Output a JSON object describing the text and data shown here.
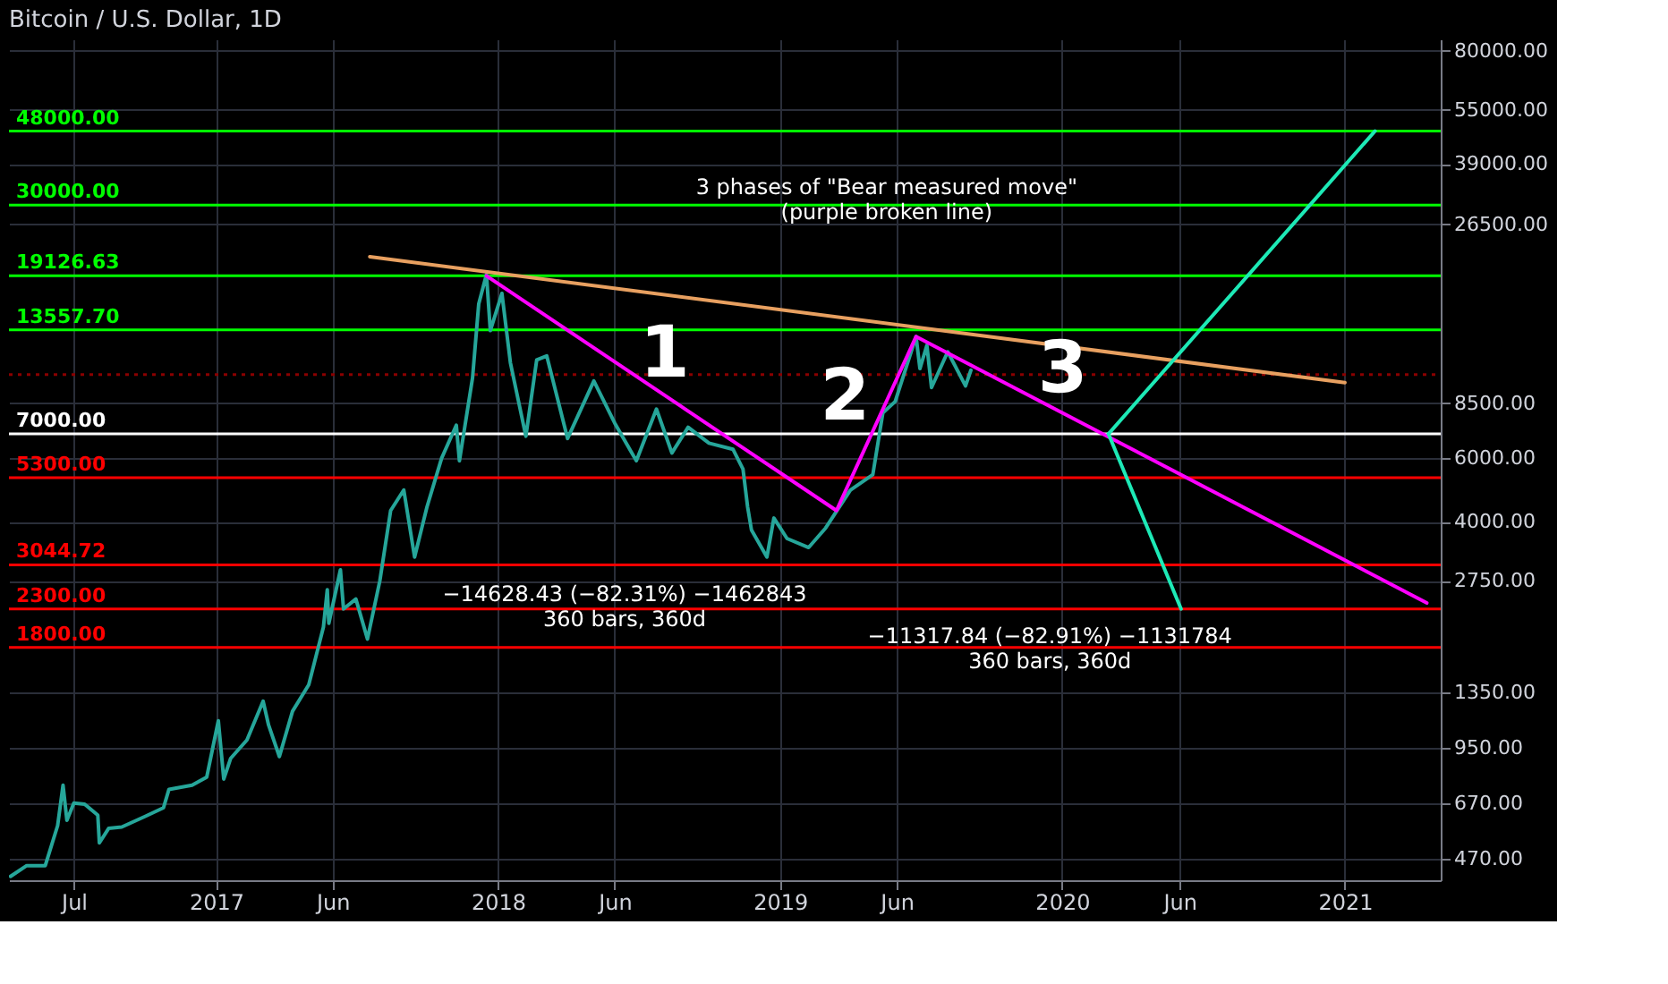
{
  "chart_data": {
    "type": "line",
    "title": "Bitcoin / U.S. Dollar, 1D",
    "xlim": [
      "2016-04-08",
      "2021-05-05"
    ],
    "xticks": [
      {
        "value": "2016-07-01",
        "label": "Jul"
      },
      {
        "value": "2017-01-01",
        "label": "2017"
      },
      {
        "value": "2017-06-01",
        "label": "Jun"
      },
      {
        "value": "2018-01-01",
        "label": "2018"
      },
      {
        "value": "2018-06-01",
        "label": "Jun"
      },
      {
        "value": "2019-01-01",
        "label": "2019"
      },
      {
        "value": "2019-06-01",
        "label": "Jun"
      },
      {
        "value": "2020-01-01",
        "label": "2020"
      },
      {
        "value": "2020-06-01",
        "label": "Jun"
      },
      {
        "value": "2021-01-01",
        "label": "2021"
      }
    ],
    "ylim": [
      410,
      86000
    ],
    "log": true,
    "yticks": [
      {
        "value": 470,
        "label": "470.00"
      },
      {
        "value": 670,
        "label": "670.00"
      },
      {
        "value": 950,
        "label": "950.00"
      },
      {
        "value": 1350,
        "label": "1350.00"
      },
      {
        "value": 2750,
        "label": "2750.00"
      },
      {
        "value": 4000,
        "label": "4000.00"
      },
      {
        "value": 6000,
        "label": "6000.00"
      },
      {
        "value": 8500,
        "label": "8500.00"
      },
      {
        "value": 26500,
        "label": "26500.00"
      },
      {
        "value": 39000,
        "label": "39000.00"
      },
      {
        "value": 55000,
        "label": "55000.00"
      },
      {
        "value": 80000,
        "label": "80000.00"
      }
    ],
    "grid": true,
    "series": [
      {
        "color": "#26a69a",
        "x": [
          "2016-04-10",
          "2016-05-01",
          "2016-05-25",
          "2016-06-10",
          "2016-06-17",
          "2016-06-22",
          "2016-07-01",
          "2016-07-15",
          "2016-08-01",
          "2016-08-03",
          "2016-08-15",
          "2016-09-01",
          "2016-10-01",
          "2016-10-25",
          "2016-11-01",
          "2016-12-01",
          "2016-12-20",
          "2017-01-04",
          "2017-01-11",
          "2017-01-20",
          "2017-02-10",
          "2017-03-03",
          "2017-03-10",
          "2017-03-24",
          "2017-04-10",
          "2017-05-01",
          "2017-05-20",
          "2017-05-25",
          "2017-05-27",
          "2017-06-11",
          "2017-06-15",
          "2017-07-01",
          "2017-07-16",
          "2017-08-01",
          "2017-08-15",
          "2017-09-01",
          "2017-09-15",
          "2017-10-01",
          "2017-10-20",
          "2017-11-08",
          "2017-11-12",
          "2017-11-29",
          "2017-12-07",
          "2017-12-17",
          "2017-12-22",
          "2018-01-06",
          "2018-01-17",
          "2018-02-06",
          "2018-02-20",
          "2018-03-05",
          "2018-04-01",
          "2018-05-05",
          "2018-06-01",
          "2018-06-29",
          "2018-07-25",
          "2018-08-14",
          "2018-09-04",
          "2018-10-01",
          "2018-11-01",
          "2018-11-14",
          "2018-11-20",
          "2018-11-25",
          "2018-12-15",
          "2018-12-24",
          "2019-01-10",
          "2019-02-07",
          "2019-03-01",
          "2019-04-02",
          "2019-05-01",
          "2019-05-14",
          "2019-05-30",
          "2019-06-26",
          "2019-07-01",
          "2019-07-10",
          "2019-07-16",
          "2019-08-06",
          "2019-08-29",
          "2019-09-05"
        ],
        "values": [
          420,
          450,
          450,
          580,
          750,
          600,
          670,
          665,
          620,
          520,
          570,
          575,
          615,
          650,
          730,
          750,
          790,
          1130,
          780,
          890,
          1000,
          1280,
          1100,
          900,
          1200,
          1420,
          2050,
          2600,
          2100,
          2950,
          2300,
          2450,
          1900,
          2750,
          4300,
          4900,
          3200,
          4400,
          6000,
          7400,
          5900,
          10000,
          16000,
          19300,
          13500,
          17100,
          11000,
          6900,
          11200,
          11500,
          6800,
          9800,
          7500,
          5900,
          8200,
          6200,
          7300,
          6600,
          6350,
          5600,
          4400,
          3800,
          3200,
          4100,
          3600,
          3400,
          3850,
          4900,
          5400,
          8000,
          8600,
          13000,
          10600,
          12300,
          9400,
          11800,
          9500,
          10500
        ]
      },
      {
        "color": "#ff00ff",
        "x": [
          "2017-12-17",
          "2019-03-15",
          "2019-06-26",
          "2021-04-17"
        ],
        "values": [
          19126.63,
          4300,
          13000,
          2390
        ]
      },
      {
        "color": "#e8a060",
        "x": [
          "2017-07-19",
          "2021-01-01"
        ],
        "values": [
          21600,
          9700
        ]
      },
      {
        "color": "#1de9b6",
        "x": [
          "2020-03-01",
          "2021-02-09"
        ],
        "values": [
          7000,
          48000
        ]
      },
      {
        "color": "#1de9b6",
        "x": [
          "2020-03-01",
          "2020-06-03"
        ],
        "values": [
          7000,
          2300
        ]
      }
    ],
    "ref_lines": [
      {
        "axis": "y",
        "value": 48000,
        "label": "48000.00",
        "color": "#00ff00"
      },
      {
        "axis": "y",
        "value": 30000,
        "label": "30000.00",
        "color": "#00ff00"
      },
      {
        "axis": "y",
        "value": 19126.63,
        "label": "19126.63",
        "color": "#00ff00"
      },
      {
        "axis": "y",
        "value": 13557.7,
        "label": "13557.70",
        "color": "#00ff00"
      },
      {
        "axis": "y",
        "value": 10200,
        "color": "#8b0000",
        "line_style": "dotted"
      },
      {
        "axis": "y",
        "value": 7000,
        "label": "7000.00",
        "color": "#ffffff"
      },
      {
        "axis": "y",
        "value": 5300,
        "label": "5300.00",
        "color": "#ff0000"
      },
      {
        "axis": "y",
        "value": 3044.72,
        "label": "3044.72",
        "color": "#ff0000"
      },
      {
        "axis": "y",
        "value": 2300,
        "label": "2300.00",
        "color": "#ff0000"
      },
      {
        "axis": "y",
        "value": 1800,
        "label": "1800.00",
        "color": "#ff0000"
      }
    ],
    "annotations": [
      "3 phases of \"Bear measured move\"\n(purple broken line)",
      "1",
      "2",
      "3",
      "−14628.43 (−82.31%) −1462843\n360 bars, 360d",
      "−11317.84 (−82.91%) −1131784\n360 bars, 360d"
    ]
  }
}
